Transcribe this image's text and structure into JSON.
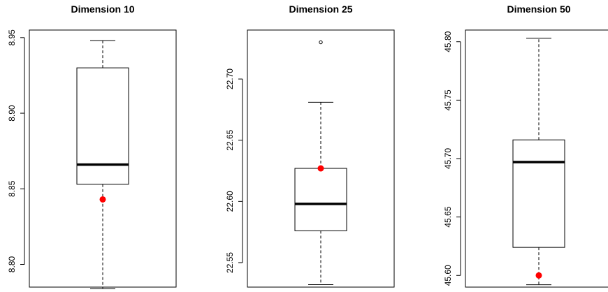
{
  "chart_data": [
    {
      "type": "boxplot",
      "title": "Dimension 10",
      "xlabel": "",
      "ylabel": "",
      "ylim": [
        8.785,
        8.955
      ],
      "yticks": [
        8.8,
        8.85,
        8.9,
        8.95
      ],
      "ytick_labels": [
        "8.80",
        "8.85",
        "8.90",
        "8.95"
      ],
      "box": {
        "whisker_low": 8.784,
        "q1": 8.853,
        "median": 8.866,
        "q3": 8.93,
        "whisker_high": 8.948
      },
      "outliers": [],
      "highlight_point": {
        "value": 8.843,
        "color": "#ff0000"
      }
    },
    {
      "type": "boxplot",
      "title": "Dimension 25",
      "xlabel": "",
      "ylabel": "",
      "ylim": [
        22.53,
        22.74
      ],
      "yticks": [
        22.55,
        22.6,
        22.65,
        22.7
      ],
      "ytick_labels": [
        "22.55",
        "22.60",
        "22.65",
        "22.70"
      ],
      "box": {
        "whisker_low": 22.532,
        "q1": 22.576,
        "median": 22.598,
        "q3": 22.627,
        "whisker_high": 22.681
      },
      "outliers": [
        22.73
      ],
      "highlight_point": {
        "value": 22.627,
        "color": "#ff0000"
      }
    },
    {
      "type": "boxplot",
      "title": "Dimension 50",
      "xlabel": "",
      "ylabel": "",
      "ylim": [
        45.59,
        45.81
      ],
      "yticks": [
        45.6,
        45.65,
        45.7,
        45.75,
        45.8
      ],
      "ytick_labels": [
        "45.60",
        "45.65",
        "45.70",
        "45.75",
        "45.80"
      ],
      "box": {
        "whisker_low": 45.592,
        "q1": 45.624,
        "median": 45.697,
        "q3": 45.716,
        "whisker_high": 45.803
      },
      "outliers": [],
      "highlight_point": {
        "value": 45.6,
        "color": "#ff0000"
      }
    }
  ]
}
